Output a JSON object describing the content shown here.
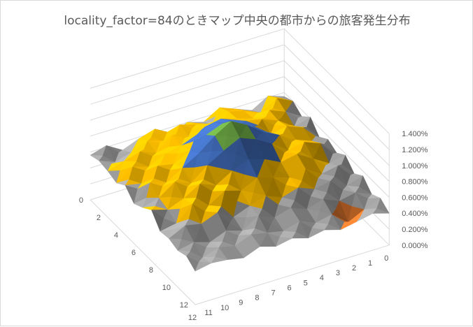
{
  "chart_data": {
    "type": "surface",
    "title": "locality_factor=84のときマップ中央の都市からの旅客発生分布",
    "categories": [
      "0",
      "1",
      "2",
      "3",
      "4",
      "5",
      "6",
      "7",
      "8",
      "9",
      "10",
      "11",
      "12"
    ],
    "series_labels": [
      "0",
      "2",
      "4",
      "6",
      "8",
      "10",
      "12"
    ],
    "series_index": [
      0,
      1,
      2,
      3,
      4,
      5,
      6,
      7,
      8,
      9,
      10,
      11,
      12
    ],
    "z_ticks": [
      "0.000%",
      "0.200%",
      "0.400%",
      "0.600%",
      "0.800%",
      "1.000%",
      "1.200%",
      "1.400%"
    ],
    "zlim": [
      0,
      1.4
    ],
    "z_unit": "%",
    "band_colors": [
      "#5B9BD5",
      "#ED7D31",
      "#A5A5A5",
      "#FFC000",
      "#4472C4",
      "#70AD47",
      "#264478"
    ],
    "grid_values_percent": [
      [
        0.55,
        0.62,
        0.5,
        0.58,
        0.66,
        0.54,
        0.6,
        0.52,
        0.64,
        0.58,
        0.5,
        0.62,
        0.56
      ],
      [
        0.6,
        0.7,
        0.58,
        0.66,
        0.72,
        0.62,
        0.68,
        0.74,
        0.6,
        0.66,
        0.58,
        0.52,
        0.6
      ],
      [
        0.52,
        0.64,
        0.72,
        0.68,
        0.74,
        0.8,
        0.76,
        0.7,
        0.78,
        0.62,
        0.7,
        0.64,
        0.58
      ],
      [
        0.62,
        0.56,
        0.7,
        0.78,
        0.82,
        0.88,
        0.92,
        0.84,
        0.76,
        0.72,
        0.62,
        0.68,
        0.54
      ],
      [
        0.48,
        0.66,
        0.74,
        0.7,
        0.86,
        0.96,
        1.02,
        0.94,
        0.8,
        0.7,
        0.74,
        0.58,
        0.62
      ],
      [
        0.56,
        0.6,
        0.68,
        0.8,
        0.9,
        1.05,
        1.16,
        1.04,
        0.88,
        0.76,
        0.64,
        0.7,
        0.5
      ],
      [
        0.5,
        0.68,
        0.76,
        0.72,
        0.86,
        0.98,
        1.06,
        0.96,
        0.84,
        0.68,
        0.76,
        0.62,
        0.56
      ],
      [
        0.58,
        0.54,
        0.66,
        0.78,
        0.74,
        0.84,
        0.9,
        0.82,
        0.7,
        0.78,
        0.66,
        0.58,
        0.64
      ],
      [
        0.46,
        0.62,
        0.58,
        0.7,
        0.66,
        0.72,
        0.78,
        0.68,
        0.74,
        0.62,
        0.7,
        0.52,
        0.48
      ],
      [
        0.54,
        0.48,
        0.6,
        0.56,
        0.64,
        0.58,
        0.66,
        0.6,
        0.52,
        0.64,
        0.56,
        0.6,
        0.5
      ],
      [
        0.42,
        0.5,
        0.46,
        0.54,
        0.48,
        0.56,
        0.5,
        0.58,
        0.46,
        0.52,
        0.44,
        0.5,
        0.46
      ],
      [
        0.48,
        0.4,
        0.3,
        0.46,
        0.42,
        0.5,
        0.44,
        0.48,
        0.52,
        0.44,
        0.48,
        0.42,
        0.5
      ],
      [
        0.4,
        0.46,
        0.42,
        0.38,
        0.44,
        0.4,
        0.46,
        0.42,
        0.48,
        0.4,
        0.44,
        0.46,
        0.42
      ]
    ],
    "grid": true,
    "legend": "none"
  }
}
